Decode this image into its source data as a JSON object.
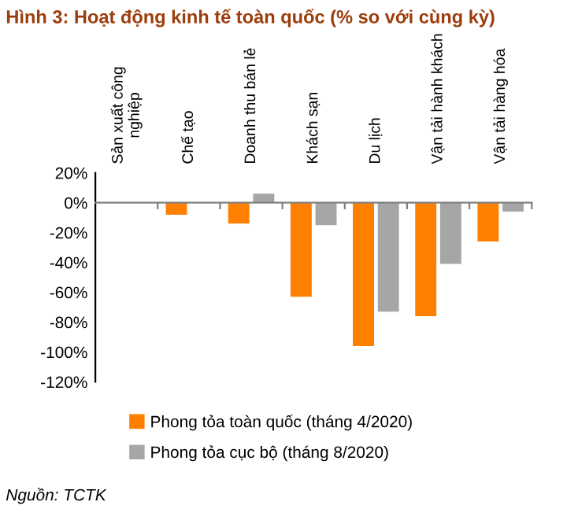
{
  "chart_data": {
    "type": "bar",
    "title": "Hình 3: Hoạt động kinh tế toàn quốc (% so với cùng kỳ)",
    "categories": [
      "Sản xuất công\nnghiệp",
      "Chế tạo",
      "Doanh thu bán lẻ",
      "Khách sạn",
      "Du lịch",
      "Vận tải hành khách",
      "Vận tải hàng hóa"
    ],
    "series": [
      {
        "name": "Phong tỏa toàn quốc (tháng 4/2020)",
        "color": "#ff7f00",
        "values": [
          0,
          -8,
          -14,
          -63,
          -96,
          -76,
          -26
        ]
      },
      {
        "name": "Phong tỏa cục bộ (tháng 8/2020)",
        "color": "#a6a6a6",
        "values": [
          0,
          0,
          6,
          -15,
          -73,
          -41,
          -6
        ]
      }
    ],
    "ylim": [
      -120,
      20
    ],
    "yticks": [
      {
        "value": 20,
        "label": "20%"
      },
      {
        "value": 0,
        "label": "0%"
      },
      {
        "value": -20,
        "label": "-20%"
      },
      {
        "value": -40,
        "label": "-40%"
      },
      {
        "value": -60,
        "label": "-60%"
      },
      {
        "value": -80,
        "label": "-80%"
      },
      {
        "value": -100,
        "label": "-100%"
      },
      {
        "value": -120,
        "label": "-120%"
      }
    ],
    "grid": false,
    "legend": "bottom",
    "annotations": [
      "Nguồn: TCTK"
    ]
  }
}
